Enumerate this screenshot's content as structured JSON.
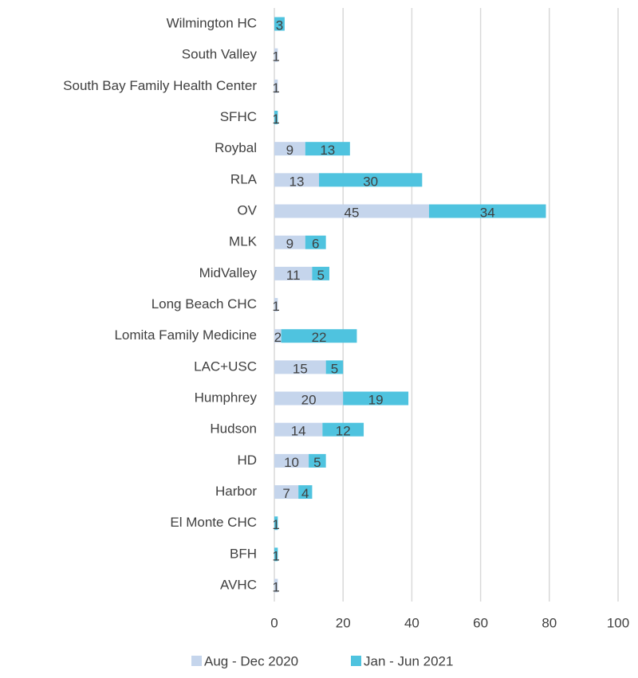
{
  "chart_data": {
    "type": "stacked-barh",
    "categories": [
      "Wilmington HC",
      "South Valley",
      "South Bay Family Health Center",
      "SFHC",
      "Roybal",
      "RLA",
      "OV",
      "MLK",
      "MidValley",
      "Long Beach CHC",
      "Lomita Family Medicine",
      "LAC+USC",
      "Humphrey",
      "Hudson",
      "HD",
      "Harbor",
      "El Monte CHC",
      "BFH",
      "AVHC"
    ],
    "series": [
      {
        "name": "Aug - Dec 2020",
        "color": "#c5d5ec",
        "values": [
          null,
          1,
          1,
          null,
          9,
          13,
          45,
          9,
          11,
          1,
          2,
          15,
          20,
          14,
          10,
          7,
          null,
          null,
          1
        ]
      },
      {
        "name": "Jan - Jun 2021",
        "color": "#4fc3df",
        "values": [
          3,
          null,
          null,
          1,
          13,
          30,
          34,
          6,
          5,
          null,
          22,
          5,
          19,
          12,
          5,
          4,
          1,
          1,
          null
        ]
      }
    ],
    "xlim": [
      0,
      100
    ],
    "xticks": [
      0,
      20,
      40,
      60,
      80,
      100
    ],
    "grid": true,
    "legend": "bottom"
  }
}
